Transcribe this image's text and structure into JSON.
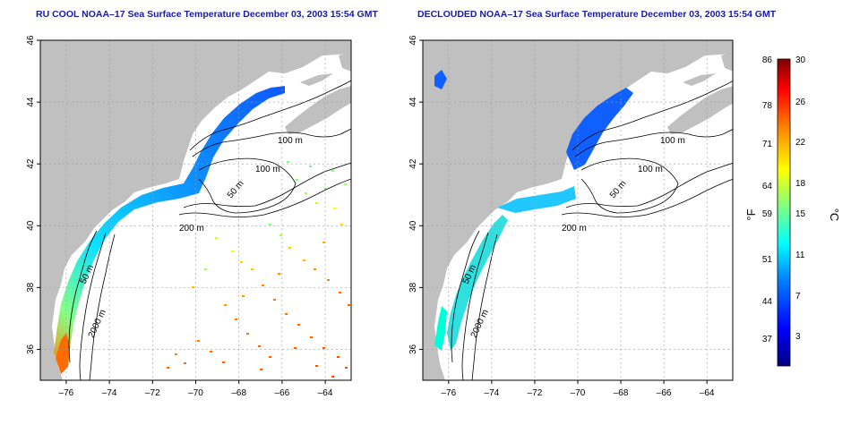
{
  "maps": [
    {
      "title": "RU COOL NOAA–17 Sea Surface Temperature December 03, 2003 15:54 GMT",
      "variant": "cloud-masked"
    },
    {
      "title": "DECLOUDED NOAA–17 Sea Surface Temperature December 03, 2003 15:54 GMT",
      "variant": "declouded"
    }
  ],
  "axes": {
    "lon_ticks": [
      "–76",
      "–74",
      "–72",
      "–70",
      "–68",
      "–66",
      "–64"
    ],
    "lat_ticks": [
      "46",
      "44",
      "42",
      "40",
      "38",
      "36"
    ],
    "lon_range": [
      -77.2,
      -62.8
    ],
    "lat_range": [
      35.0,
      46.0
    ]
  },
  "contours": [
    "100 m",
    "100 m",
    "50 m",
    "200 m",
    "50 m",
    "2000 m"
  ],
  "colorbar": {
    "fahrenheit_ticks": [
      "86",
      "78",
      "71",
      "64",
      "59",
      "51",
      "44",
      "37"
    ],
    "celsius_ticks": [
      "30",
      "26",
      "22",
      "18",
      "15",
      "11",
      "7",
      "3"
    ],
    "fahrenheit_unit": "°F",
    "celsius_unit": "°C",
    "range_c": [
      0,
      30
    ],
    "colors": [
      "#00007f",
      "#0000ff",
      "#0080ff",
      "#00ffff",
      "#80ff80",
      "#ffff00",
      "#ff8000",
      "#ff0000",
      "#7f0000"
    ]
  },
  "colors": {
    "land": "#c0c0c0",
    "ocean": "#ffffff",
    "title": "#1a1aa6",
    "grid": "#9a9a9a"
  }
}
